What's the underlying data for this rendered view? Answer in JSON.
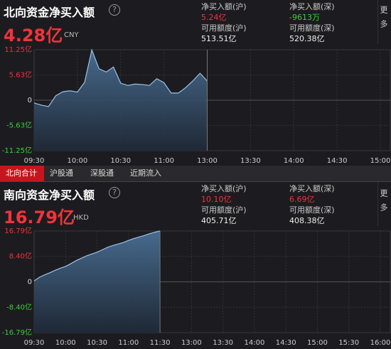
{
  "chart_data": [
    {
      "type": "area",
      "title": "北向资金净买入额",
      "total": "4.28亿",
      "currency": "CNY",
      "more": "更多",
      "stats": [
        {
          "label": "净买入额(沪)",
          "value": "5.24亿"
        },
        {
          "label": "净买入额(深)",
          "value": "-9613万"
        },
        {
          "label": "可用额度(沪)",
          "value": "513.51亿"
        },
        {
          "label": "可用额度(深)",
          "value": "520.38亿"
        }
      ],
      "x": [
        "09:30",
        "09:35",
        "09:40",
        "09:45",
        "09:50",
        "09:55",
        "10:00",
        "10:05",
        "10:10",
        "10:15",
        "10:20",
        "10:25",
        "10:30",
        "10:35",
        "10:40",
        "10:45",
        "10:50",
        "10:55",
        "11:00",
        "11:05",
        "11:10",
        "11:15",
        "11:20",
        "11:25",
        "11:30"
      ],
      "series": [
        {
          "color": "#9cc3e8",
          "values": [
            -0.6,
            -1.1,
            -1.4,
            1.0,
            1.9,
            2.1,
            1.8,
            4.0,
            11.2,
            7.0,
            6.3,
            7.4,
            3.8,
            3.3,
            3.6,
            3.5,
            3.3,
            4.8,
            3.9,
            1.6,
            1.6,
            2.8,
            4.3,
            6.0,
            4.28
          ]
        }
      ],
      "xticks": [
        "09:30",
        "10:00",
        "10:30",
        "11:00",
        "13:00",
        "13:30",
        "14:00",
        "14:30",
        "15:00"
      ],
      "ylim": [
        -11.25,
        11.25
      ],
      "yticks": [
        {
          "value": 11.25,
          "label": "11.25亿"
        },
        {
          "value": 5.63,
          "label": "5.63亿"
        },
        0,
        {
          "value": -5.63,
          "label": "-5.63亿"
        },
        {
          "value": -11.25,
          "label": "-11.25亿"
        }
      ],
      "grid": true
    },
    {
      "type": "area",
      "title": "南向资金净买入额",
      "total": "16.79亿",
      "currency": "HKD",
      "more": "更多",
      "stats": [
        {
          "label": "净买入额(沪)",
          "value": "10.10亿"
        },
        {
          "label": "净买入额(深)",
          "value": "6.69亿"
        },
        {
          "label": "可用额度(沪)",
          "value": "405.71亿"
        },
        {
          "label": "可用额度(深)",
          "value": "408.38亿"
        }
      ],
      "x": [
        "09:30",
        "09:35",
        "09:40",
        "09:45",
        "09:50",
        "09:55",
        "10:00",
        "10:05",
        "10:10",
        "10:15",
        "10:20",
        "10:25",
        "10:30",
        "10:35",
        "10:40",
        "10:45",
        "10:50",
        "10:55",
        "11:00",
        "11:05",
        "11:10",
        "11:15",
        "11:20",
        "11:25",
        "11:30"
      ],
      "series": [
        {
          "color": "#9cc3e8",
          "values": [
            0.3,
            1.5,
            2.3,
            3.0,
            3.8,
            4.5,
            5.1,
            6.0,
            7.0,
            7.8,
            8.6,
            9.2,
            9.8,
            10.6,
            11.4,
            12.0,
            12.5,
            13.0,
            13.7,
            14.3,
            14.8,
            15.3,
            15.9,
            16.4,
            16.79
          ]
        }
      ],
      "xticks": [
        "09:30",
        "10:00",
        "10:30",
        "11:00",
        "11:30",
        "13:00",
        "13:30",
        "14:00",
        "14:30",
        "15:00",
        "15:30",
        "16:00"
      ],
      "ylim": [
        -16.79,
        16.79
      ],
      "yticks": [
        {
          "value": 16.79,
          "label": "16.79亿"
        },
        {
          "value": 8.4,
          "label": "8.40亿"
        },
        0,
        {
          "value": -8.4,
          "label": "-8.40亿"
        },
        {
          "value": -16.79,
          "label": "-16.79亿"
        }
      ],
      "grid": true
    }
  ],
  "tabs": [
    "北向合计",
    "沪股通",
    "深股通",
    "近期流入"
  ],
  "active_tab": 0
}
